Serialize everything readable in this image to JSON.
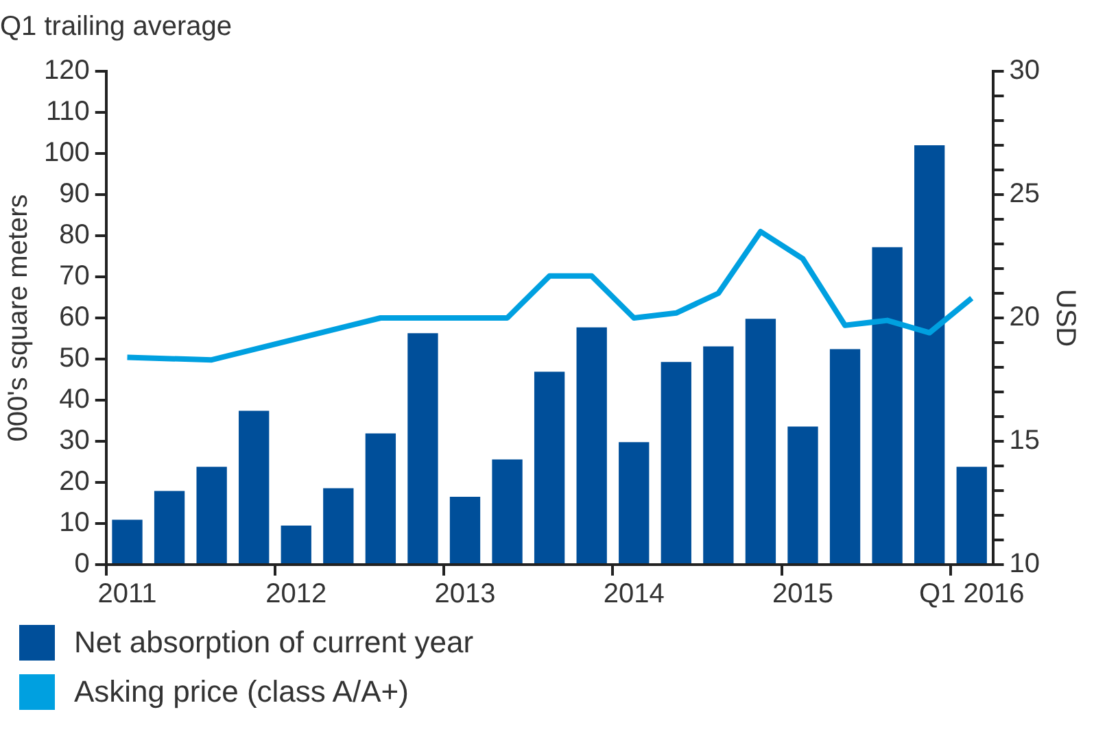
{
  "chart_data": {
    "type": "bar",
    "title": "Q1 trailing average",
    "ylabel": "000's square meters",
    "y2label": "USD",
    "categories": [
      "2011",
      null,
      null,
      null,
      "2012",
      null,
      null,
      null,
      "2013",
      null,
      null,
      null,
      "2014",
      null,
      null,
      null,
      "2015",
      null,
      null,
      null,
      "Q1 2016"
    ],
    "series": [
      {
        "name": "Net absorption of current year",
        "color": "#004f9a",
        "values": [
          10.9,
          17.9,
          23.8,
          37.4,
          9.5,
          18.6,
          31.9,
          56.3,
          16.5,
          25.6,
          46.9,
          57.7,
          29.8,
          49.3,
          53.1,
          59.8,
          33.6,
          52.4,
          77.2,
          102,
          23.8
        ]
      },
      {
        "name": "Asking price (class A/A+)",
        "type": "line",
        "axis": "y2",
        "color": "#00a0e0",
        "values": [
          18.4,
          null,
          18.3,
          null,
          null,
          null,
          20,
          null,
          null,
          20,
          21.7,
          21.7,
          20,
          20.2,
          21,
          23.5,
          22.4,
          19.7,
          19.9,
          19.4,
          20.8
        ]
      }
    ],
    "ylim": [
      0,
      120
    ],
    "yticks": [
      0,
      10,
      20,
      30,
      40,
      50,
      60,
      70,
      80,
      90,
      100,
      110,
      120
    ],
    "y2lim": [
      10,
      30
    ],
    "y2ticks": [
      10,
      {
        "value": 11,
        "label": null
      },
      {
        "value": 12,
        "label": null
      },
      {
        "value": 13,
        "label": null
      },
      {
        "value": 14,
        "label": null
      },
      15,
      {
        "value": 16,
        "label": null
      },
      {
        "value": 17,
        "label": null
      },
      {
        "value": 18,
        "label": null
      },
      {
        "value": 19,
        "label": null
      },
      20,
      {
        "value": 21,
        "label": null
      },
      {
        "value": 22,
        "label": null
      },
      {
        "value": 23,
        "label": null
      },
      {
        "value": 24,
        "label": null
      },
      25,
      {
        "value": 26,
        "label": null
      },
      {
        "value": 27,
        "label": null
      },
      {
        "value": 28,
        "label": null
      },
      {
        "value": 29,
        "label": null
      },
      30
    ],
    "grid": false,
    "legend": "bottom left"
  }
}
